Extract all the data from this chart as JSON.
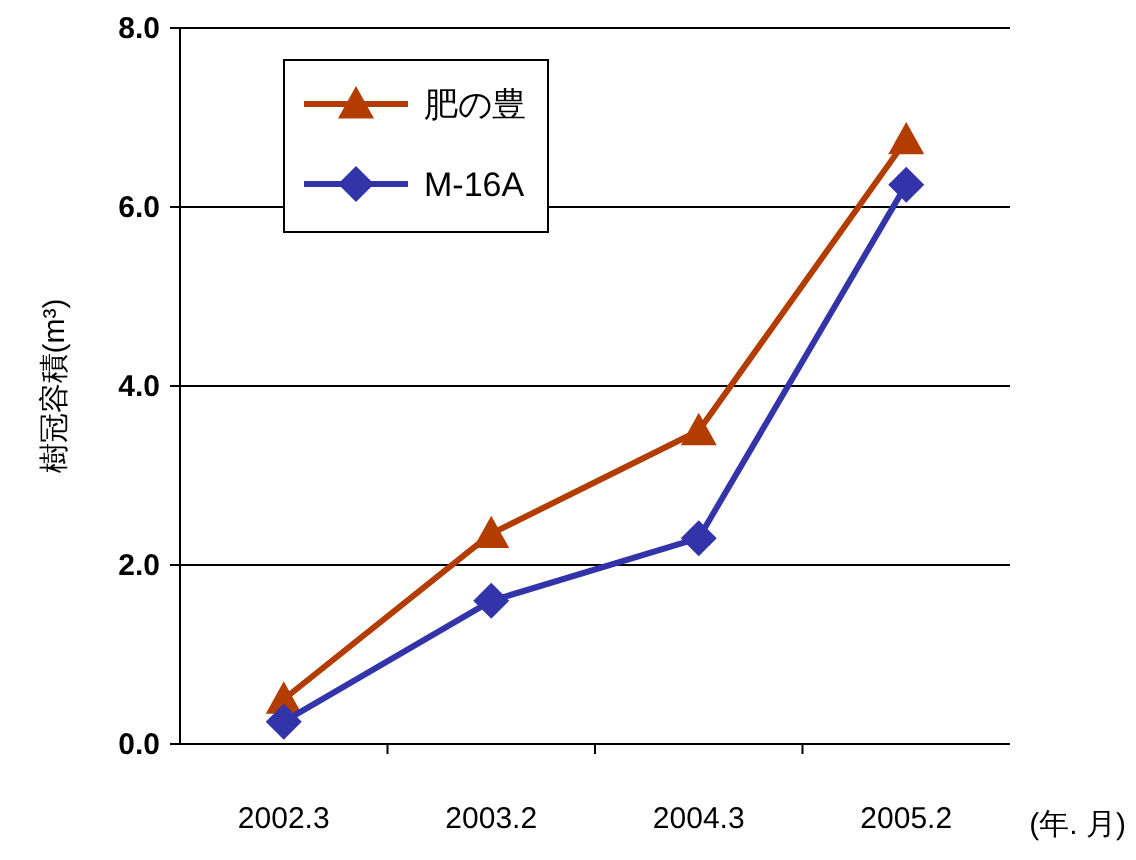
{
  "chart_data": {
    "type": "line",
    "ylabel": "樹冠容積(m³)",
    "xlabel": "(年. 月)",
    "categories": [
      "2002.3",
      "2003.2",
      "2004.3",
      "2005.2"
    ],
    "series": [
      {
        "name": "肥の豊",
        "color": "#b33c00",
        "marker": "triangle",
        "values": [
          0.5,
          2.35,
          3.5,
          6.75
        ]
      },
      {
        "name": "M-16A",
        "color": "#3333aa",
        "marker": "diamond",
        "values": [
          0.25,
          1.6,
          2.3,
          6.25
        ]
      }
    ],
    "ylim": [
      0,
      8
    ],
    "yticks": [
      {
        "value": 0,
        "label": "0.0"
      },
      {
        "value": 2,
        "label": "2.0"
      },
      {
        "value": 4,
        "label": "4.0"
      },
      {
        "value": 6,
        "label": "6.0"
      },
      {
        "value": 8,
        "label": "8.0"
      }
    ],
    "grid": "y",
    "legend": "top left",
    "line_style": "solid"
  }
}
